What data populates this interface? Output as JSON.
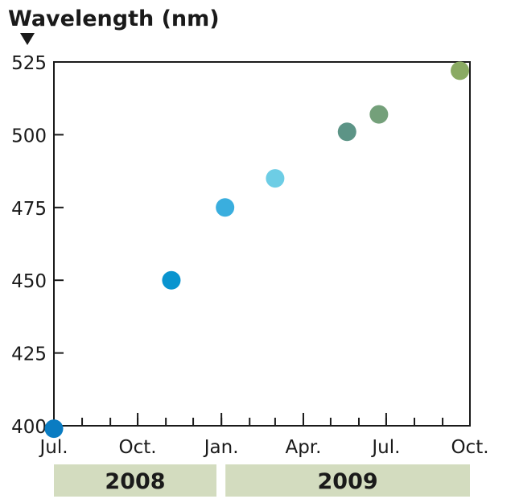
{
  "chart_data": {
    "type": "scatter",
    "title": "Wavelength (nm)",
    "ylim": [
      400,
      525
    ],
    "yticks": [
      400,
      425,
      450,
      475,
      500,
      525
    ],
    "xlim": [
      "2008-07-01",
      "2009-10-01"
    ],
    "xtick_labels": [
      {
        "label": "Jul.",
        "date": "2008-07-01"
      },
      {
        "label": "Oct.",
        "date": "2008-10-01"
      },
      {
        "label": "Jan.",
        "date": "2009-01-01"
      },
      {
        "label": "Apr.",
        "date": "2009-04-01"
      },
      {
        "label": "Jul.",
        "date": "2009-07-01"
      },
      {
        "label": "Oct.",
        "date": "2009-10-01"
      }
    ],
    "minor_ticks": "monthly",
    "grid": false,
    "years": [
      {
        "label": "2008",
        "start": "2008-07-01",
        "end": "2008-12-31"
      },
      {
        "label": "2009",
        "start": "2009-01-01",
        "end": "2009-10-01"
      }
    ],
    "points": [
      {
        "x": "2008-07-01",
        "y": 399,
        "color": "#0a7cc2"
      },
      {
        "x": "2008-11-07",
        "y": 450,
        "color": "#0994cf"
      },
      {
        "x": "2009-01-05",
        "y": 475,
        "color": "#3aaede"
      },
      {
        "x": "2009-03-01",
        "y": 485,
        "color": "#6dcde5"
      },
      {
        "x": "2009-05-19",
        "y": 501,
        "color": "#5c9486"
      },
      {
        "x": "2009-06-23",
        "y": 507,
        "color": "#74a07a"
      },
      {
        "x": "2009-09-20",
        "y": 522,
        "color": "#8aaa63"
      }
    ],
    "colors": {
      "axis": "#1a1a1a",
      "year_band": "#d3dcbf"
    }
  }
}
